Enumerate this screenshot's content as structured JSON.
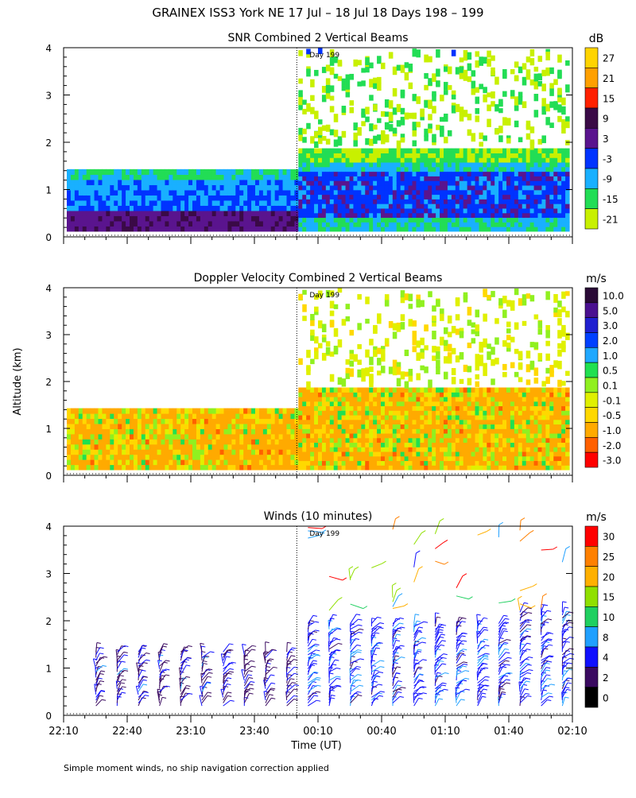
{
  "page": {
    "title": "GRAINEX ISS3 York NE  17 Jul – 18 Jul 18 Days 198 – 199",
    "ylabel": "Altitude (km)",
    "xlabel": "Time (UT)",
    "footnote": "Simple moment winds, no ship navigation correction applied",
    "day_marker": "Day 199"
  },
  "chart_data": [
    {
      "type": "heatmap",
      "title": "SNR Combined 2 Vertical Beams",
      "units": "dB",
      "xlabel": "Time (UT)",
      "ylabel": "Altitude (km)",
      "x_ticks": [
        "22:10",
        "22:40",
        "23:10",
        "23:40",
        "00:10",
        "00:40",
        "01:10",
        "01:40",
        "02:10"
      ],
      "y_ticks": [
        "0",
        "1",
        "2",
        "3",
        "4"
      ],
      "ylim": [
        0,
        4
      ],
      "colorbar": {
        "labels": [
          "27",
          "21",
          "15",
          "9",
          "3",
          "-3",
          "-9",
          "-15",
          "-21"
        ],
        "colors": [
          "#ffd400",
          "#ffa000",
          "#ff2000",
          "#3a0a46",
          "#5a148e",
          "#0033ff",
          "#19b0ff",
          "#22dd55",
          "#c8f000"
        ]
      },
      "day_boundary_time": "00:00"
    },
    {
      "type": "heatmap",
      "title": "Doppler Velocity Combined 2 Vertical Beams",
      "units": "m/s",
      "xlabel": "Time (UT)",
      "ylabel": "Altitude (km)",
      "x_ticks": [
        "22:10",
        "22:40",
        "23:10",
        "23:40",
        "00:10",
        "00:40",
        "01:10",
        "01:40",
        "02:10"
      ],
      "y_ticks": [
        "0",
        "1",
        "2",
        "3",
        "4"
      ],
      "ylim": [
        0,
        4
      ],
      "colorbar": {
        "labels": [
          "10.0",
          "5.0",
          "3.0",
          "2.0",
          "1.0",
          "0.5",
          "0.1",
          "-0.1",
          "-0.5",
          "-1.0",
          "-2.0",
          "-3.0"
        ],
        "colors": [
          "#2a0a36",
          "#4a1090",
          "#2020d0",
          "#0040ff",
          "#20a8ff",
          "#20e050",
          "#90f020",
          "#e0f000",
          "#ffd800",
          "#ffaa00",
          "#ff6000",
          "#ff0000"
        ]
      },
      "day_boundary_time": "00:00"
    },
    {
      "type": "scatter",
      "title": "Winds (10 minutes)",
      "units": "m/s",
      "xlabel": "Time (UT)",
      "ylabel": "Altitude (km)",
      "x_ticks": [
        "22:10",
        "22:40",
        "23:10",
        "23:40",
        "00:10",
        "00:40",
        "01:10",
        "01:40",
        "02:10"
      ],
      "y_ticks": [
        "0",
        "1",
        "2",
        "3",
        "4"
      ],
      "ylim": [
        0,
        4
      ],
      "colorbar": {
        "labels": [
          "30",
          "25",
          "20",
          "15",
          "10",
          "8",
          "4",
          "2",
          "0"
        ],
        "colors": [
          "#ff0000",
          "#ff8000",
          "#ffb000",
          "#90e000",
          "#20d060",
          "#20a0ff",
          "#1010ff",
          "#3a0a60",
          "#000000"
        ]
      },
      "day_boundary_time": "00:00"
    }
  ]
}
